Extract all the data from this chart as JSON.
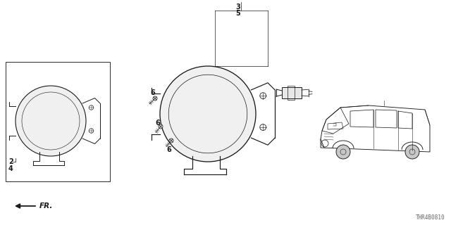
{
  "bg_color": "#ffffff",
  "part_number_label": "THR4B0810",
  "text_color": "#1a1a1a",
  "line_color": "#1a1a1a",
  "lw_main": 0.7,
  "lw_thin": 0.5,
  "label_2_4": "2\n4",
  "label_3_5": "3\n5",
  "label_6": "6",
  "label_fr": "FR.",
  "font_size": 7,
  "font_size_small": 5.5
}
